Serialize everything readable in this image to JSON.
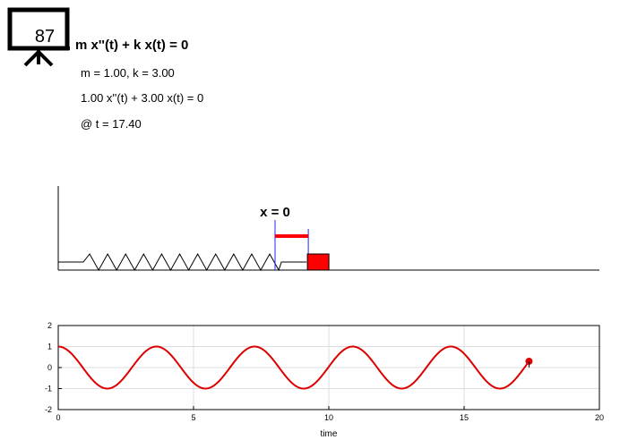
{
  "board": {
    "number": "87"
  },
  "equation": {
    "title": "m x''(t) + k x(t) = 0",
    "params": "m = 1.00, k = 3.00",
    "instance": "1.00 x''(t) + 3.00 x(t) = 0",
    "time": "@ t = 17.40"
  },
  "simulation": {
    "mass": 1.0,
    "k": 3.0,
    "t": 17.4,
    "x": 0.3,
    "equilibrium_label": "x = 0",
    "colors": {
      "mass": "#ff0000",
      "displacement": "#ff0000",
      "markers": "#2222ff",
      "spring": "#000000"
    }
  },
  "chart_data": {
    "type": "line",
    "xlabel": "time",
    "ylabel": "",
    "xlim": [
      0,
      20
    ],
    "ylim": [
      -2,
      2
    ],
    "xticks": [
      0,
      5,
      10,
      15,
      20
    ],
    "yticks": [
      -2,
      -1,
      0,
      1,
      2
    ],
    "grid": true,
    "series": [
      {
        "color": "#dd0000",
        "formula": "cos(sqrt(k/m) * t)",
        "t_start": 0,
        "t_end": 17.4,
        "amplitude": 1.0,
        "angular_frequency": 1.732
      }
    ],
    "current_point": {
      "x": 17.4,
      "y": 0.3
    }
  }
}
